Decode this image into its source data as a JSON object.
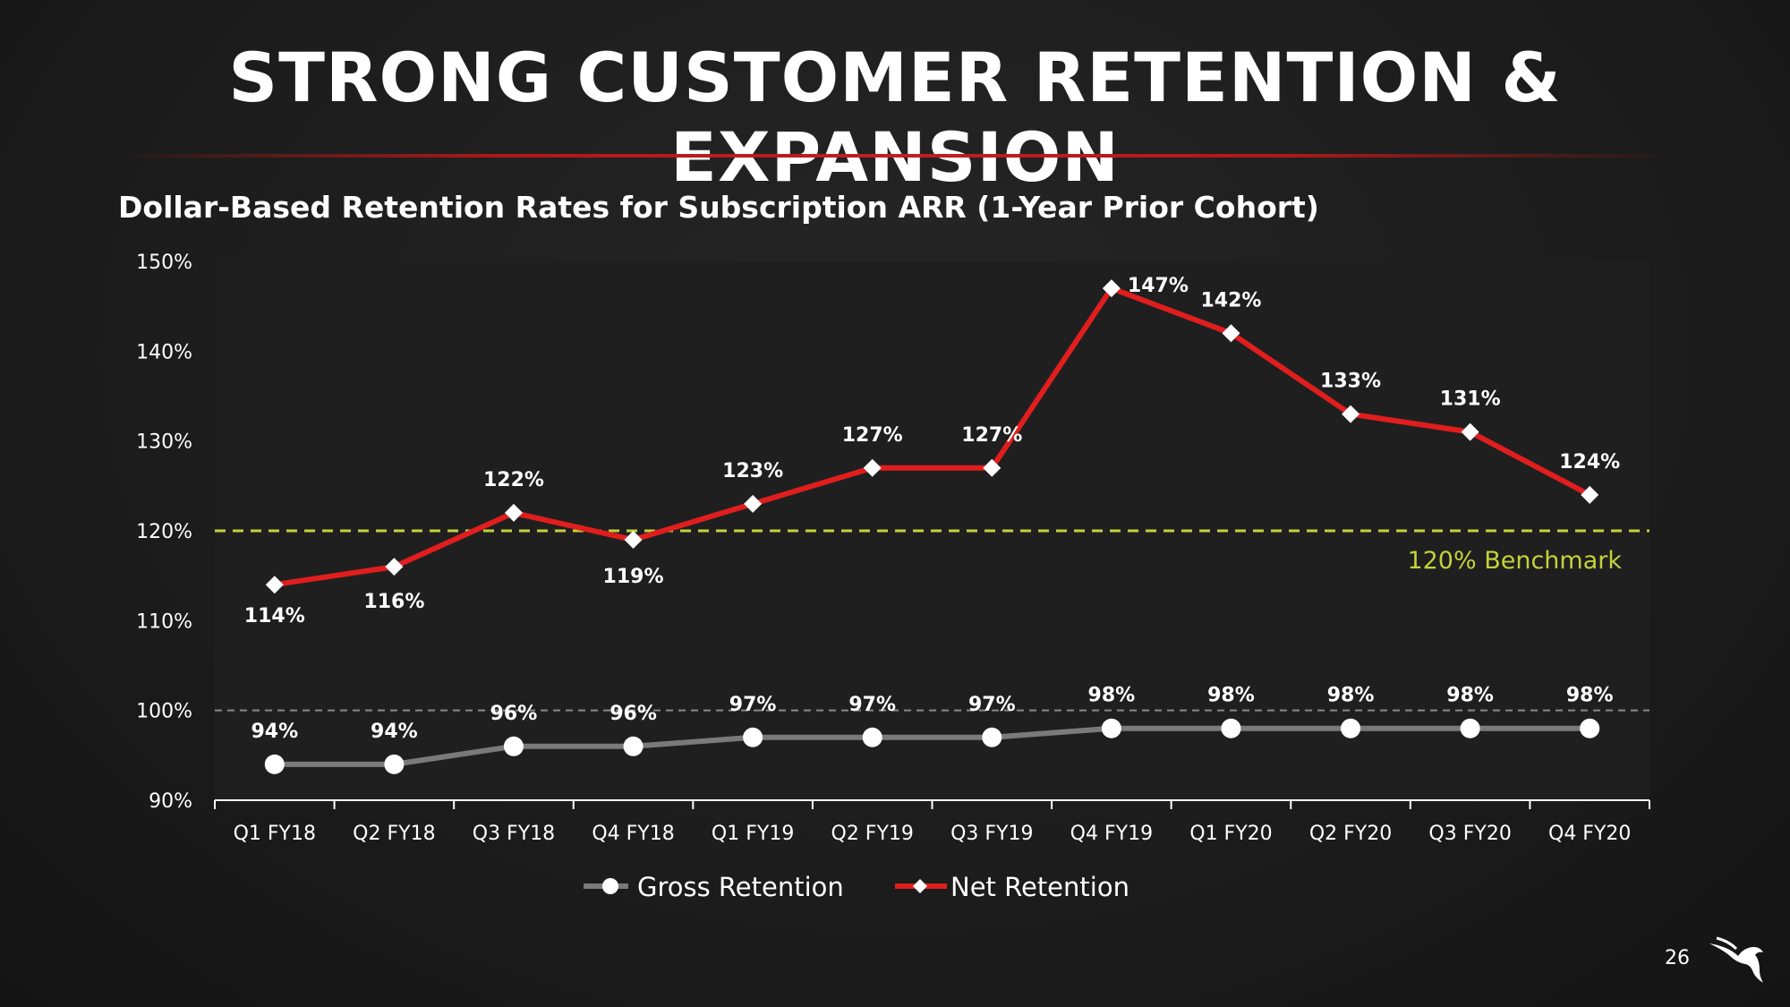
{
  "slide": {
    "title": "STRONG CUSTOMER RETENTION & EXPANSION",
    "subtitle": "Dollar-Based Retention Rates for Subscription ARR (1-Year Prior Cohort)",
    "page_number": "26",
    "logo_icon": "falcon-logo-icon"
  },
  "colors": {
    "background": "#1b1b1b",
    "plot_background": "#1f1f1f",
    "net": "#e01e1e",
    "gross": "#7a7a7a",
    "benchmark": "#c3d23a",
    "reference": "#8a8a8a",
    "text": "#ffffff"
  },
  "chart_data": {
    "type": "line",
    "title": "Dollar-Based Retention Rates for Subscription ARR (1-Year Prior Cohort)",
    "categories": [
      "Q1 FY18",
      "Q2 FY18",
      "Q3 FY18",
      "Q4 FY18",
      "Q1 FY19",
      "Q2 FY19",
      "Q3 FY19",
      "Q4 FY19",
      "Q1 FY20",
      "Q2 FY20",
      "Q3 FY20",
      "Q4 FY20"
    ],
    "ylim": [
      90,
      150
    ],
    "yticks": [
      90,
      100,
      110,
      120,
      130,
      140,
      150
    ],
    "ytick_labels": [
      "90%",
      "100%",
      "110%",
      "120%",
      "130%",
      "140%",
      "150%"
    ],
    "series": [
      {
        "name": "Gross Retention",
        "marker": "circle",
        "values": [
          94,
          94,
          96,
          96,
          97,
          97,
          97,
          98,
          98,
          98,
          98,
          98
        ],
        "labels": [
          "94%",
          "94%",
          "96%",
          "96%",
          "97%",
          "97%",
          "97%",
          "98%",
          "98%",
          "98%",
          "98%",
          "98%"
        ]
      },
      {
        "name": "Net Retention",
        "marker": "diamond",
        "values": [
          114,
          116,
          122,
          119,
          123,
          127,
          127,
          147,
          142,
          133,
          131,
          124
        ],
        "labels": [
          "114%",
          "116%",
          "122%",
          "119%",
          "123%",
          "127%",
          "127%",
          "147%",
          "142%",
          "133%",
          "131%",
          "124%"
        ]
      }
    ],
    "reference_lines": [
      {
        "name": "benchmark",
        "value": 120,
        "label": "120% Benchmark"
      },
      {
        "name": "hundred-percent",
        "value": 100,
        "label": ""
      }
    ],
    "legend": [
      "Gross Retention",
      "Net Retention"
    ],
    "legend_position": "bottom-center"
  }
}
